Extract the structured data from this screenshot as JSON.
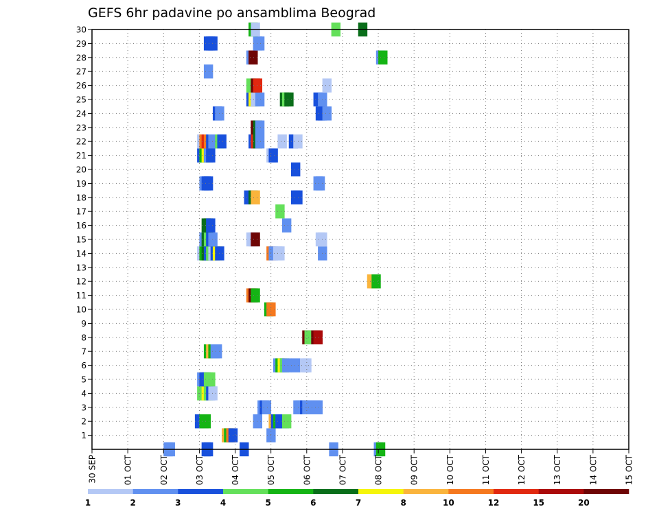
{
  "chart_data": {
    "type": "heatmap",
    "title": "GEFS 6hr padavine po ansamblima Beograd",
    "xlabel": "",
    "ylabel": "",
    "x_ticks": [
      "30 SEP",
      "01 OCT",
      "02 OCT",
      "03 OCT",
      "04 OCT",
      "05 OCT",
      "06 OCT",
      "07 OCT",
      "08 OCT",
      "09 OCT",
      "10 OCT",
      "11 OCT",
      "12 OCT",
      "13 OCT",
      "14 OCT",
      "15 OCT"
    ],
    "x_range_days": [
      0,
      15
    ],
    "y_ticks": [
      1,
      2,
      3,
      4,
      5,
      6,
      7,
      8,
      9,
      10,
      11,
      12,
      13,
      14,
      15,
      16,
      17,
      18,
      19,
      20,
      21,
      22,
      23,
      24,
      25,
      26,
      27,
      28,
      29,
      30
    ],
    "y_range": [
      0,
      30
    ],
    "grid": true,
    "legend_position": "bottom",
    "legend_labels": [
      "1",
      "2",
      "3",
      "4",
      "5",
      "6",
      "7",
      "8",
      "10",
      "12",
      "15",
      "20"
    ],
    "color_bins": [
      "#b4c8f5",
      "#6090f0",
      "#1850dc",
      "#64e05a",
      "#14b414",
      "#0a6e1a",
      "#f5f50a",
      "#fab43c",
      "#f5781e",
      "#e1280f",
      "#aa0a0a",
      "#6e0505"
    ],
    "bin_edges": [
      1,
      2,
      3,
      4,
      5,
      6,
      7,
      8,
      10,
      12,
      15,
      20
    ],
    "cells": [
      [
        12.25,
        0,
        2
      ],
      [
        12.5,
        0,
        2
      ],
      [
        16.5,
        0,
        2
      ],
      [
        8,
        0,
        1
      ],
      [
        8.25,
        0,
        1
      ],
      [
        26.5,
        0,
        1
      ],
      [
        31.5,
        0,
        1
      ],
      [
        31.75,
        0,
        4
      ],
      [
        19.5,
        1,
        1
      ],
      [
        14.5,
        1,
        7
      ],
      [
        14.75,
        1,
        4
      ],
      [
        15,
        1,
        8
      ],
      [
        15.25,
        1,
        2
      ],
      [
        11.5,
        2,
        2
      ],
      [
        12,
        2,
        4
      ],
      [
        12.25,
        2,
        4
      ],
      [
        18,
        2,
        1
      ],
      [
        19.75,
        2,
        7
      ],
      [
        20,
        2,
        2
      ],
      [
        20.25,
        2,
        4
      ],
      [
        20.5,
        2,
        2
      ],
      [
        20.75,
        2,
        2
      ],
      [
        21,
        2,
        2
      ],
      [
        21.25,
        2,
        3
      ],
      [
        22.5,
        3,
        1
      ],
      [
        22.75,
        3,
        1
      ],
      [
        23,
        3,
        1
      ],
      [
        23.25,
        3,
        2
      ],
      [
        23.5,
        3,
        1
      ],
      [
        18.5,
        3,
        1
      ],
      [
        18.75,
        3,
        2
      ],
      [
        19,
        3,
        1
      ],
      [
        23.75,
        3,
        1
      ],
      [
        24.5,
        3,
        1
      ],
      [
        24.75,
        3,
        1
      ],
      [
        11.75,
        4,
        3
      ],
      [
        12,
        4,
        3
      ],
      [
        12.25,
        4,
        6
      ],
      [
        12.5,
        4,
        3
      ],
      [
        12.75,
        4,
        2
      ],
      [
        13,
        4,
        0
      ],
      [
        11.75,
        5,
        1
      ],
      [
        12,
        5,
        2
      ],
      [
        12.25,
        5,
        2
      ],
      [
        12.5,
        5,
        3
      ],
      [
        12.75,
        5,
        3
      ],
      [
        20.25,
        6,
        1
      ],
      [
        20.5,
        6,
        4
      ],
      [
        20.75,
        6,
        6
      ],
      [
        21,
        6,
        3
      ],
      [
        21.25,
        6,
        1
      ],
      [
        22.25,
        6,
        1
      ],
      [
        23.25,
        6,
        0
      ],
      [
        23.5,
        6,
        0
      ],
      [
        12.5,
        7,
        4
      ],
      [
        12.75,
        7,
        7
      ],
      [
        13,
        7,
        4
      ],
      [
        13.25,
        7,
        1
      ],
      [
        13.5,
        7,
        1
      ],
      [
        23.5,
        8,
        11
      ],
      [
        23.75,
        8,
        3
      ],
      [
        24.5,
        8,
        11
      ],
      [
        24.75,
        8,
        10
      ],
      [
        19.25,
        10,
        4
      ],
      [
        19.5,
        10,
        8
      ],
      [
        17.25,
        11,
        8
      ],
      [
        17.5,
        11,
        11
      ],
      [
        17.75,
        11,
        4
      ],
      [
        30.75,
        12,
        7
      ],
      [
        31,
        12,
        7
      ],
      [
        31.25,
        12,
        4
      ],
      [
        11.75,
        14,
        0
      ],
      [
        12,
        14,
        4
      ],
      [
        12.25,
        14,
        5
      ],
      [
        12.5,
        14,
        2
      ],
      [
        12.75,
        14,
        3
      ],
      [
        13,
        14,
        0
      ],
      [
        13.25,
        14,
        2
      ],
      [
        13.5,
        14,
        6
      ],
      [
        13.75,
        14,
        2
      ],
      [
        19.5,
        14,
        8
      ],
      [
        19.75,
        14,
        1
      ],
      [
        20.25,
        14,
        0
      ],
      [
        20.5,
        14,
        0
      ],
      [
        25.25,
        14,
        1
      ],
      [
        12,
        15,
        1
      ],
      [
        12.25,
        15,
        5
      ],
      [
        12.5,
        15,
        3
      ],
      [
        12.75,
        15,
        2
      ],
      [
        13,
        15,
        1
      ],
      [
        17.25,
        15,
        0
      ],
      [
        17.5,
        15,
        0
      ],
      [
        17.75,
        15,
        11
      ],
      [
        25,
        15,
        0
      ],
      [
        25.25,
        15,
        0
      ],
      [
        12.25,
        16,
        5
      ],
      [
        12.5,
        16,
        5
      ],
      [
        12.75,
        16,
        2
      ],
      [
        21.25,
        16,
        1
      ],
      [
        20.5,
        17,
        3
      ],
      [
        17,
        18,
        2
      ],
      [
        17.5,
        18,
        5
      ],
      [
        17.75,
        18,
        7
      ],
      [
        22.25,
        18,
        2
      ],
      [
        22.5,
        18,
        2
      ],
      [
        12,
        19,
        1
      ],
      [
        12.25,
        19,
        2
      ],
      [
        12.5,
        19,
        2
      ],
      [
        24.75,
        19,
        1
      ],
      [
        25,
        19,
        1
      ],
      [
        22.25,
        20,
        2
      ],
      [
        11.75,
        21,
        2
      ],
      [
        12,
        21,
        4
      ],
      [
        12.25,
        21,
        6
      ],
      [
        12.5,
        21,
        1
      ],
      [
        12.75,
        21,
        2
      ],
      [
        19.5,
        21,
        0
      ],
      [
        19.75,
        21,
        2
      ],
      [
        11.75,
        22,
        0
      ],
      [
        12,
        22,
        8
      ],
      [
        12.25,
        22,
        9
      ],
      [
        12.5,
        22,
        8
      ],
      [
        12.75,
        22,
        2
      ],
      [
        13,
        22,
        1
      ],
      [
        13.75,
        22,
        3
      ],
      [
        14,
        22,
        2
      ],
      [
        17.5,
        22,
        2
      ],
      [
        17.75,
        22,
        9
      ],
      [
        18,
        22,
        5
      ],
      [
        18.25,
        22,
        1
      ],
      [
        20.75,
        22,
        0
      ],
      [
        22,
        22,
        2
      ],
      [
        22.5,
        22,
        0
      ],
      [
        17.75,
        23,
        11
      ],
      [
        18,
        23,
        5
      ],
      [
        18.25,
        23,
        1
      ],
      [
        13.5,
        24,
        2
      ],
      [
        13.75,
        24,
        1
      ],
      [
        25,
        24,
        2
      ],
      [
        25.25,
        24,
        2
      ],
      [
        25.75,
        24,
        1
      ],
      [
        17.25,
        25,
        2
      ],
      [
        17.5,
        25,
        6
      ],
      [
        17.75,
        25,
        0
      ],
      [
        18.25,
        25,
        1
      ],
      [
        21,
        25,
        5
      ],
      [
        21.25,
        25,
        3
      ],
      [
        21.5,
        25,
        5
      ],
      [
        24.75,
        25,
        2
      ],
      [
        25.25,
        25,
        1
      ],
      [
        17.25,
        26,
        3
      ],
      [
        17.75,
        26,
        11
      ],
      [
        18,
        26,
        9
      ],
      [
        25.75,
        26,
        0
      ],
      [
        12.5,
        27,
        1
      ],
      [
        17.25,
        28,
        1
      ],
      [
        17.5,
        28,
        11
      ],
      [
        31.75,
        28,
        1
      ],
      [
        32,
        28,
        4
      ],
      [
        12.5,
        29,
        2
      ],
      [
        12.75,
        29,
        2
      ],
      [
        13,
        29,
        2
      ],
      [
        18,
        29,
        1
      ],
      [
        18.25,
        29,
        1
      ],
      [
        17.5,
        30,
        4
      ],
      [
        17.75,
        30,
        0
      ],
      [
        26.75,
        30,
        3
      ],
      [
        29.75,
        30,
        5
      ]
    ]
  }
}
